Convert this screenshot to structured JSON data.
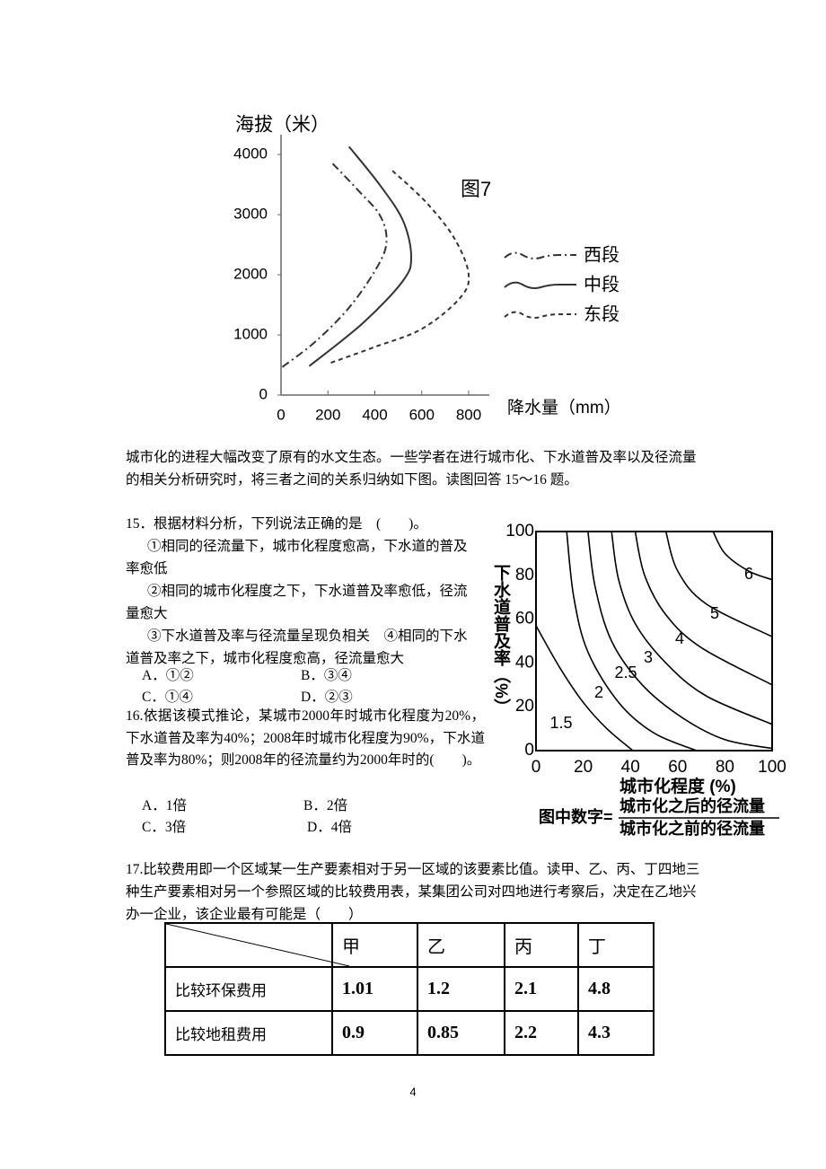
{
  "figure7": {
    "type": "line",
    "title": "图7",
    "y_label": "海拔（米）",
    "x_label": "降水量（mm）",
    "xlim": [
      0,
      888
    ],
    "ylim": [
      0,
      4330
    ],
    "xticks": [
      0,
      200,
      400,
      600,
      800
    ],
    "yticks": [
      0,
      1000,
      2000,
      3000,
      4000
    ],
    "series": [
      {
        "name": "西段",
        "dash": "dashdot",
        "x": [
          220,
          330,
          420,
          450,
          420,
          300,
          150,
          0
        ],
        "y": [
          3850,
          3400,
          3000,
          2600,
          2200,
          1500,
          900,
          450
        ]
      },
      {
        "name": "中段",
        "dash": "solid",
        "x": [
          290,
          420,
          520,
          555,
          520,
          350,
          120
        ],
        "y": [
          4130,
          3500,
          2900,
          2300,
          1900,
          1200,
          480
        ]
      },
      {
        "name": "东段",
        "dash": "dashed",
        "x": [
          475,
          620,
          740,
          800,
          760,
          600,
          400,
          200
        ],
        "y": [
          3730,
          3200,
          2600,
          2000,
          1600,
          1100,
          800,
          520
        ]
      }
    ]
  },
  "passage": "城市化的进程大幅改变了原有的水文生态。一些学者在进行城市化、下水道普及率以及径流量的相关分析研究时，将三者之间的关系归纳如下图。读图回答 15～16 题。",
  "question15": {
    "stem": "15．根据材料分析，下列说法正确的是　(　　)。",
    "statements": [
      "①相同的径流量下，城市化程度愈高，下水道的普及率愈低",
      "②相同的城市化程度之下，下水道普及率愈低，径流量愈大",
      "③下水道普及率与径流量呈现负相关",
      "④相同的下水道普及率之下，城市化程度愈高，径流量愈大"
    ],
    "options": [
      "A．①②",
      "B．③④",
      "C．①④",
      "D．②③"
    ]
  },
  "figure_runoff": {
    "type": "contour",
    "x_label": "城市化程度 (%)",
    "y_label": "下水道普及率（%）",
    "xlim": [
      0,
      100
    ],
    "ylim": [
      0,
      100
    ],
    "xticks": [
      0,
      20,
      40,
      60,
      80,
      100
    ],
    "yticks": [
      0,
      20,
      40,
      60,
      80,
      100
    ],
    "contours": [
      {
        "level": 1.5,
        "x": [
          0,
          10,
          20,
          30,
          41
        ],
        "y": [
          57,
          38,
          22,
          10,
          0
        ]
      },
      {
        "level": 2,
        "x": [
          13,
          16,
          22,
          35,
          50,
          68
        ],
        "y": [
          100,
          70,
          45,
          22,
          8,
          0
        ]
      },
      {
        "level": 2.5,
        "x": [
          22,
          25,
          32,
          45,
          62,
          80,
          100
        ],
        "y": [
          100,
          75,
          50,
          30,
          15,
          5,
          1
        ]
      },
      {
        "level": 3,
        "x": [
          32,
          35,
          42,
          55,
          72,
          100
        ],
        "y": [
          100,
          78,
          58,
          40,
          25,
          12
        ]
      },
      {
        "level": 4,
        "x": [
          42,
          46,
          55,
          70,
          100
        ],
        "y": [
          100,
          80,
          62,
          47,
          30
        ]
      },
      {
        "level": 5,
        "x": [
          55,
          60,
          72,
          100
        ],
        "y": [
          100,
          82,
          67,
          52
        ]
      },
      {
        "level": 6,
        "x": [
          75,
          80,
          90,
          100
        ],
        "y": [
          100,
          90,
          82,
          78
        ]
      }
    ],
    "formula": {
      "prefix": "图中数字=",
      "numerator": "城市化之后的径流量",
      "denominator": "城市化之前的径流量"
    }
  },
  "question16": {
    "stem": "16.依据该模式推论，某城市2000年时城市化程度为20%，下水道普及率为40%；2008年时城市化程度为90%，下水道普及率为80%；则2008年的径流量约为2000年时的(　　)。",
    "options": [
      "A．1倍",
      "B．2倍",
      "C．3倍",
      "D．4倍"
    ]
  },
  "question17": {
    "stem": "17.比较费用即一个区域某一生产要素相对于另一区域的该要素比值。读甲、乙、丙、丁四地三种生产要素相对另一个参照区域的比较费用表，某集团公司对四地进行考察后，决定在乙地兴办一企业，该企业最有可能是（　　）",
    "table": {
      "header": [
        "甲",
        "乙",
        "丙",
        "丁"
      ],
      "rows": [
        {
          "label": "比较环保费用",
          "values": [
            "1.01",
            "1.2",
            "2.1",
            "4.8"
          ]
        },
        {
          "label": "比较地租费用",
          "values": [
            "0.9",
            "0.85",
            "2.2",
            "4.3"
          ]
        }
      ]
    }
  },
  "page_number": "4"
}
